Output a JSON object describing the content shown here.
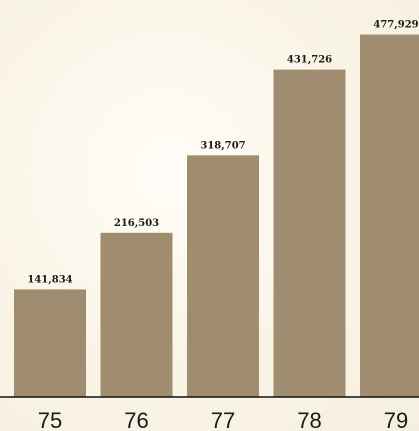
{
  "chart_data": {
    "type": "bar",
    "categories": [
      "75",
      "76",
      "77",
      "78",
      "79"
    ],
    "values": [
      141834,
      216503,
      318707,
      431726,
      477929
    ],
    "data_labels": [
      "141,834",
      "216,503",
      "318,707",
      "431,726",
      "477,929"
    ],
    "title": "",
    "xlabel": "",
    "ylabel": "",
    "ylim": [
      0,
      480000
    ],
    "grid": false,
    "legend": "none",
    "bar_color": "#a08d70"
  }
}
